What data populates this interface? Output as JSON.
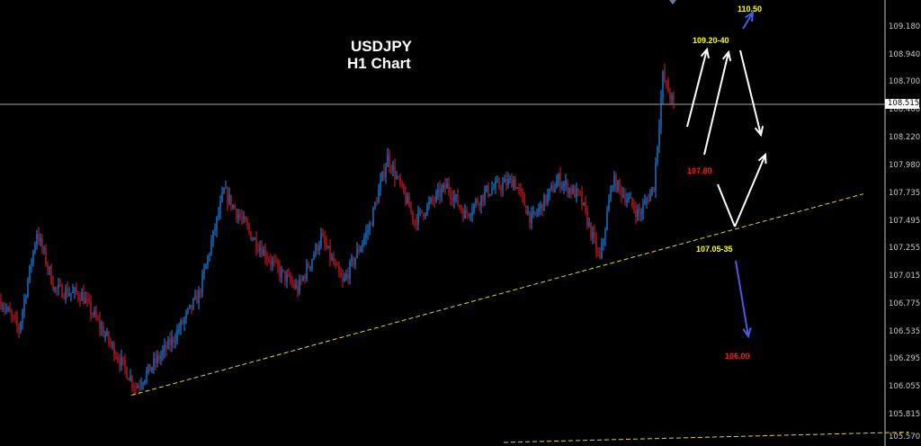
{
  "title": {
    "symbol": "USDJPY",
    "timeframe": "H1 Chart"
  },
  "current_price": "108.515",
  "colors": {
    "background": "#000000",
    "bull_candle": "#1e90ff",
    "bear_candle": "#e0202a",
    "trendline": "#e0d040",
    "projection_arrow": "#ffffff",
    "bearish_arrow": "#4a5ae8",
    "level_yellow": "#ffff00",
    "level_red": "#ff1a1a"
  },
  "chart_data": {
    "type": "candlestick",
    "title": "USDJPY H1 Chart",
    "ylim": [
      105.57,
      109.32
    ],
    "y_ticks": [
      "109.180",
      "108.940",
      "108.700",
      "108.460",
      "108.220",
      "107.980",
      "107.735",
      "107.495",
      "107.255",
      "107.015",
      "106.775",
      "106.535",
      "106.295",
      "106.055",
      "105.815",
      "105.570"
    ],
    "last_price": 108.515,
    "price_path": [
      {
        "bar": 0,
        "price": 106.8
      },
      {
        "bar": 10,
        "price": 106.55
      },
      {
        "bar": 20,
        "price": 107.4
      },
      {
        "bar": 30,
        "price": 106.9
      },
      {
        "bar": 45,
        "price": 106.85
      },
      {
        "bar": 60,
        "price": 106.45
      },
      {
        "bar": 75,
        "price": 106.05
      },
      {
        "bar": 95,
        "price": 106.45
      },
      {
        "bar": 110,
        "price": 106.85
      },
      {
        "bar": 124,
        "price": 107.75
      },
      {
        "bar": 140,
        "price": 107.35
      },
      {
        "bar": 155,
        "price": 107.05
      },
      {
        "bar": 165,
        "price": 106.9
      },
      {
        "bar": 178,
        "price": 107.35
      },
      {
        "bar": 190,
        "price": 106.95
      },
      {
        "bar": 205,
        "price": 107.45
      },
      {
        "bar": 215,
        "price": 108.05
      },
      {
        "bar": 230,
        "price": 107.5
      },
      {
        "bar": 248,
        "price": 107.8
      },
      {
        "bar": 258,
        "price": 107.55
      },
      {
        "bar": 270,
        "price": 107.75
      },
      {
        "bar": 285,
        "price": 107.85
      },
      {
        "bar": 295,
        "price": 107.5
      },
      {
        "bar": 310,
        "price": 107.85
      },
      {
        "bar": 322,
        "price": 107.7
      },
      {
        "bar": 333,
        "price": 107.15
      },
      {
        "bar": 340,
        "price": 107.85
      },
      {
        "bar": 355,
        "price": 107.55
      },
      {
        "bar": 363,
        "price": 107.8
      },
      {
        "bar": 368,
        "price": 108.75
      },
      {
        "bar": 374,
        "price": 108.5
      }
    ],
    "trendlines": [
      {
        "from": {
          "bar": 73,
          "price": 105.98
        },
        "to": {
          "bar": 480,
          "price": 107.73
        }
      },
      {
        "from": {
          "bar": 280,
          "price": 105.57
        },
        "to": {
          "bar": 505,
          "price": 105.66
        }
      }
    ],
    "annotations": [
      {
        "text": "110.50",
        "color": "yellow",
        "price": 109.3
      },
      {
        "text": "109.20-40",
        "color": "yellow",
        "price": 109.1
      },
      {
        "text": "107.80",
        "color": "red",
        "price": 107.93
      },
      {
        "text": "107.05-35",
        "color": "yellow",
        "price": 107.22
      },
      {
        "text": "106.00",
        "color": "red",
        "price": 106.3
      }
    ]
  }
}
